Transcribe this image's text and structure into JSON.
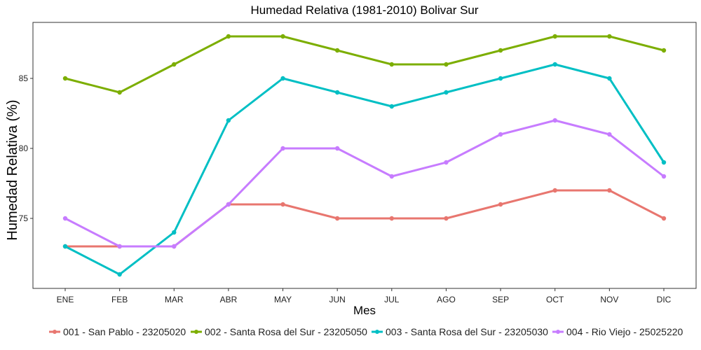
{
  "chart_data": {
    "type": "line",
    "title": "Humedad Relativa (1981-2010)  Bolivar Sur",
    "xlabel": "Mes",
    "ylabel": "Humedad Relativa  (%)",
    "categories": [
      "ENE",
      "FEB",
      "MAR",
      "ABR",
      "MAY",
      "JUN",
      "JUL",
      "AGO",
      "SEP",
      "OCT",
      "NOV",
      "DIC"
    ],
    "ylim": [
      70,
      89
    ],
    "yticks": [
      75,
      80,
      85
    ],
    "grid": false,
    "legend_position": "bottom",
    "series": [
      {
        "name": "001 - San Pablo - 23205020",
        "color": "#E8766F",
        "values": [
          73,
          73,
          73,
          76,
          76,
          75,
          75,
          75,
          76,
          77,
          77,
          75
        ]
      },
      {
        "name": "002 - Santa Rosa del Sur - 23205050",
        "color": "#7CAE00",
        "values": [
          85,
          84,
          86,
          88,
          88,
          87,
          86,
          86,
          87,
          88,
          88,
          87
        ]
      },
      {
        "name": "003 - Santa Rosa del Sur - 23205030",
        "color": "#00BFC4",
        "values": [
          73,
          71,
          74,
          82,
          85,
          84,
          83,
          84,
          85,
          86,
          85,
          79
        ]
      },
      {
        "name": "004 - Rio Viejo - 25025220",
        "color": "#C77CFF",
        "values": [
          75,
          73,
          73,
          76,
          80,
          80,
          78,
          79,
          81,
          82,
          81,
          78
        ]
      }
    ]
  }
}
